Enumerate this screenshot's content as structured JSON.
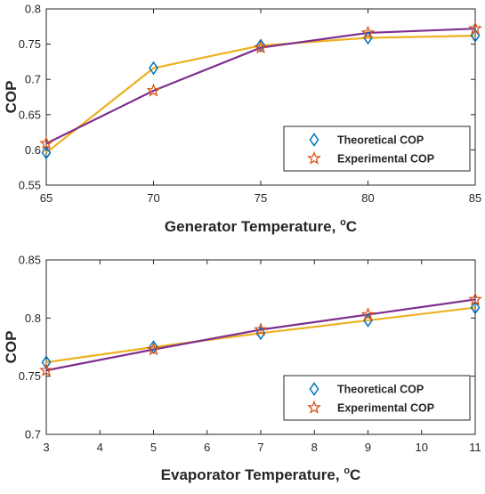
{
  "chart_data": [
    {
      "type": "line",
      "xlabel": "Generator Temperature, ",
      "xlabel_sup": "o",
      "xlabel_unit": "C",
      "ylabel": "COP",
      "xlim": [
        65,
        85
      ],
      "ylim": [
        0.55,
        0.8
      ],
      "xticks": [
        65,
        70,
        75,
        80,
        85
      ],
      "xtick_labels": [
        "65",
        "70",
        "75",
        "80",
        "85"
      ],
      "yticks": [
        0.55,
        0.6,
        0.65,
        0.7,
        0.75,
        0.8
      ],
      "ytick_labels": [
        "0.55",
        "0.6",
        "0.65",
        "0.7",
        "0.75",
        "0.8"
      ],
      "grid": false,
      "legend_position": "bottom-right",
      "x": [
        65,
        70,
        75,
        80,
        85
      ],
      "series": [
        {
          "name": "Theoretical COP",
          "marker": "diamond",
          "line_color": "#EDB120",
          "marker_color": "#0072BD",
          "values": [
            0.596,
            0.716,
            0.748,
            0.759,
            0.762
          ]
        },
        {
          "name": "Experimental COP",
          "marker": "star",
          "line_color": "#7E2F8E",
          "marker_color": "#D95319",
          "values": [
            0.609,
            0.684,
            0.745,
            0.766,
            0.772
          ]
        }
      ]
    },
    {
      "type": "line",
      "xlabel": "Evaporator Temperature, ",
      "xlabel_sup": "o",
      "xlabel_unit": "C",
      "ylabel": "COP",
      "xlim": [
        3,
        11
      ],
      "ylim": [
        0.7,
        0.85
      ],
      "xticks": [
        3,
        4,
        5,
        6,
        7,
        8,
        9,
        10,
        11
      ],
      "xtick_labels": [
        "3",
        "4",
        "5",
        "6",
        "7",
        "8",
        "9",
        "10",
        "11"
      ],
      "yticks": [
        0.7,
        0.75,
        0.8,
        0.85
      ],
      "ytick_labels": [
        "0.7",
        "0.75",
        "0.8",
        "0.85"
      ],
      "grid": false,
      "legend_position": "bottom-right",
      "x": [
        3,
        5,
        7,
        9,
        11
      ],
      "series": [
        {
          "name": "Theoretical COP",
          "marker": "diamond",
          "line_color": "#EDB120",
          "marker_color": "#0072BD",
          "values": [
            0.762,
            0.775,
            0.787,
            0.798,
            0.809
          ]
        },
        {
          "name": "Experimental COP",
          "marker": "star",
          "line_color": "#7E2F8E",
          "marker_color": "#D95319",
          "values": [
            0.755,
            0.773,
            0.79,
            0.803,
            0.816
          ]
        }
      ]
    }
  ]
}
